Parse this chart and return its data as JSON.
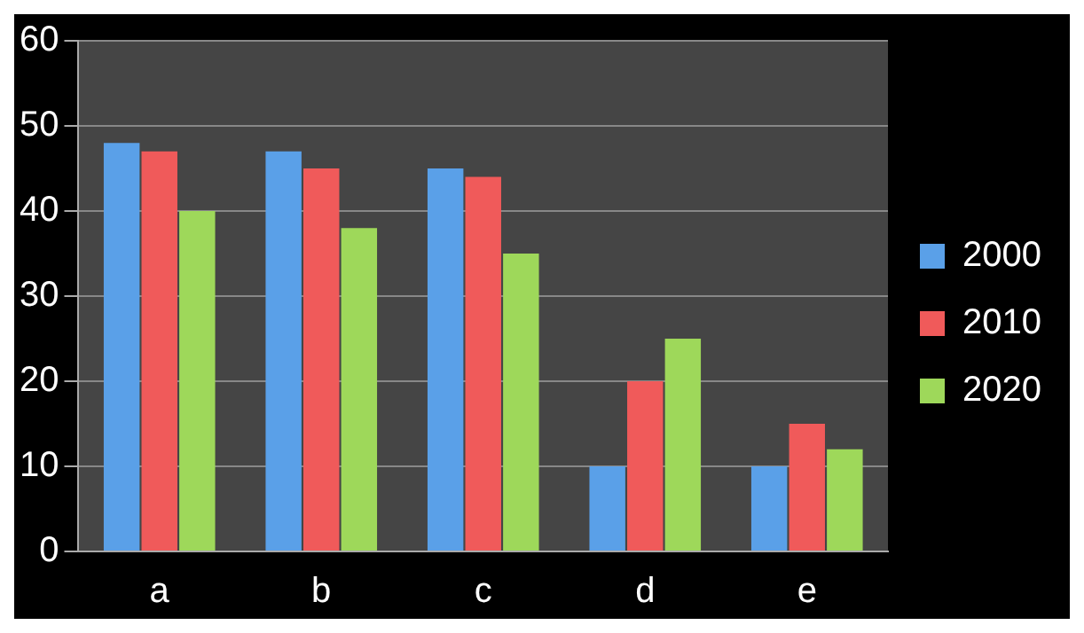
{
  "chart_data": {
    "type": "bar",
    "categories": [
      "a",
      "b",
      "c",
      "d",
      "e"
    ],
    "series": [
      {
        "name": "2000",
        "color": "#5aa0e8",
        "values": [
          48,
          47,
          45,
          10,
          10
        ]
      },
      {
        "name": "2010",
        "color": "#f05a5a",
        "values": [
          47,
          45,
          44,
          20,
          15
        ]
      },
      {
        "name": "2020",
        "color": "#9ed85a",
        "values": [
          40,
          38,
          35,
          25,
          12
        ]
      }
    ],
    "ylim": [
      0,
      60
    ],
    "yticks": [
      0,
      10,
      20,
      30,
      40,
      50,
      60
    ],
    "grid": "y",
    "legend": "right"
  }
}
